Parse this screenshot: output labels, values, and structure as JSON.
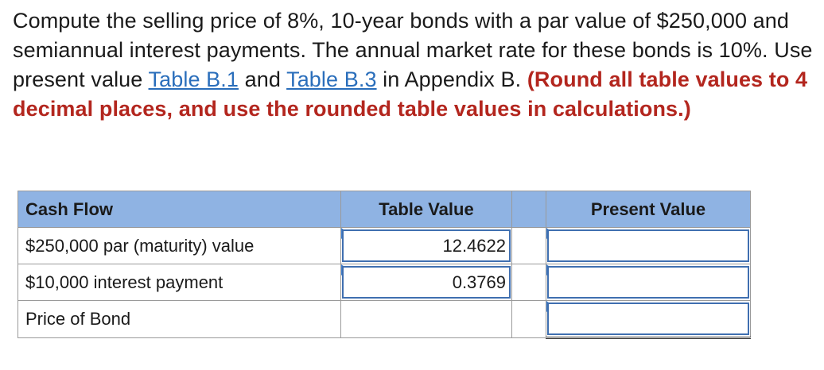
{
  "question": {
    "part1": "Compute the selling price of 8%, 10-year bonds with a par value of $250,000 and semiannual interest payments. The annual market rate for these bonds is 10%. Use present value ",
    "link1": "Table B.1",
    "part2": " and ",
    "link2": "Table B.3",
    "part3": " in Appendix B. ",
    "emphasis": "(Round all table values to 4 decimal places, and use the rounded table values in calculations.)"
  },
  "table": {
    "headers": {
      "cash_flow": "Cash Flow",
      "table_value": "Table Value",
      "present_value": "Present Value"
    },
    "rows": [
      {
        "label": "$250,000 par (maturity) value",
        "table_value": "12.4622",
        "present_value": ""
      },
      {
        "label": "$10,000 interest payment",
        "table_value": "0.3769",
        "present_value": ""
      },
      {
        "label": "Price of Bond",
        "present_value": ""
      }
    ]
  },
  "colors": {
    "header_bg": "#8fb3e3",
    "input_border": "#3f6fb0",
    "emphasis": "#b3261e",
    "link": "#2a6ebb"
  }
}
